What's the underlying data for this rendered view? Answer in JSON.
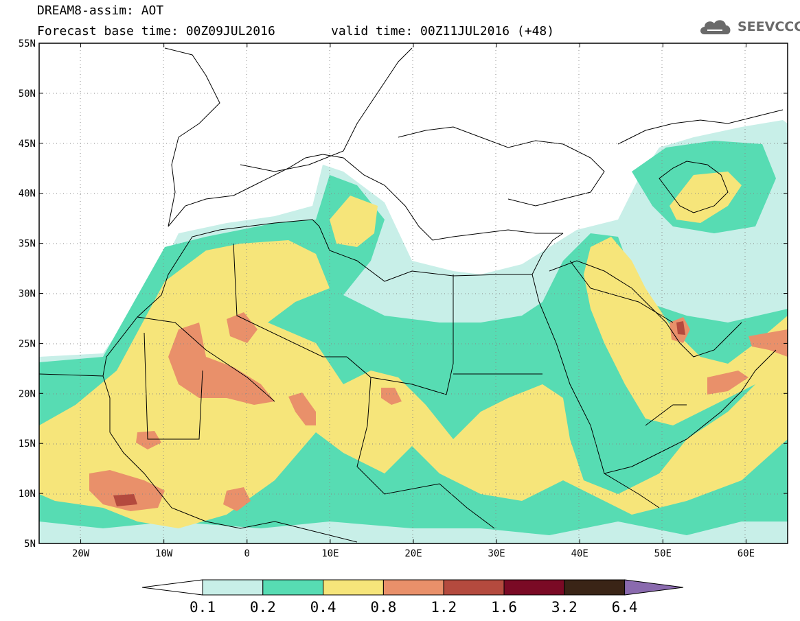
{
  "header": {
    "model_title": "DREAM8-assim: AOT",
    "base_time": "Forecast base time: 00Z09JUL2016",
    "valid_time": "valid time: 00Z11JUL2016 (+48)",
    "logo_text": "SEEVCCC"
  },
  "map": {
    "lon_range": [
      -25,
      65
    ],
    "lat_range": [
      5,
      55
    ],
    "grid": "dotted",
    "lat_labels": [
      "55N",
      "50N",
      "45N",
      "40N",
      "35N",
      "30N",
      "25N",
      "20N",
      "15N",
      "10N",
      "5N"
    ],
    "lat_values": [
      55,
      50,
      45,
      40,
      35,
      30,
      25,
      20,
      15,
      10,
      5
    ],
    "lon_labels": [
      "20W",
      "10W",
      "0",
      "10E",
      "20E",
      "30E",
      "40E",
      "50E",
      "60E"
    ],
    "lon_values": [
      -20,
      -10,
      0,
      10,
      20,
      30,
      40,
      50,
      60
    ]
  },
  "colorbar": {
    "labels": [
      "0.1",
      "0.2",
      "0.4",
      "0.8",
      "1.2",
      "1.6",
      "3.2",
      "6.4"
    ],
    "levels": [
      0.1,
      0.2,
      0.4,
      0.8,
      1.2,
      1.6,
      3.2,
      6.4
    ],
    "colors": [
      "#ffffff",
      "#c8efe8",
      "#57dcb3",
      "#f6e57a",
      "#e9906a",
      "#b44a3e",
      "#7a0a25",
      "#3a2416",
      "#8a6aae"
    ]
  }
}
